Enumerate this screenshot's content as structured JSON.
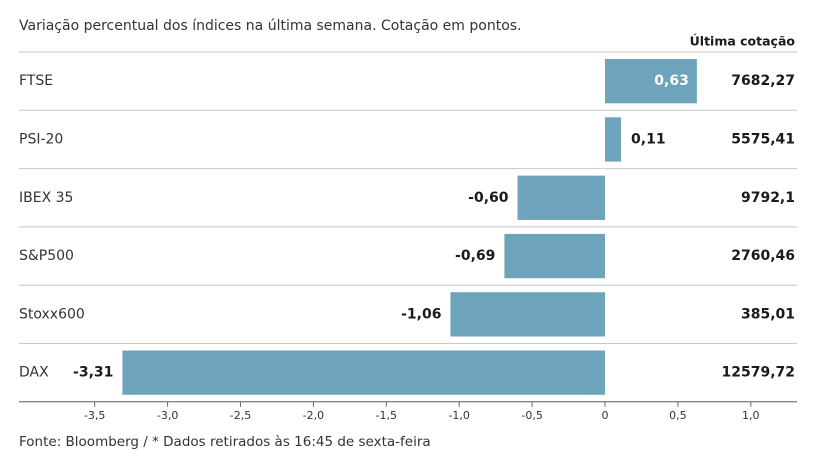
{
  "header": {
    "subtitle": "Variação percentual dos índices na última semana. Cotação em pontos."
  },
  "footer": {
    "source": "Fonte: Bloomberg / * Dados retirados às 16:45 de sexta-feira"
  },
  "chart_data": {
    "type": "bar",
    "orientation": "horizontal",
    "title": "",
    "xlabel": "",
    "ylabel": "",
    "xlim": [
      -3.5,
      1.0
    ],
    "grid": false,
    "bar_color": "#6ea3bc",
    "value_column_header": "Última cotação",
    "categories": [
      "FTSE",
      "PSI-20",
      "IBEX 35",
      "S&P500",
      "Stoxx600",
      "DAX"
    ],
    "values": [
      0.63,
      0.11,
      -0.6,
      -0.69,
      -1.06,
      -3.31
    ],
    "value_labels": [
      "0,63",
      "0,11",
      "-0,60",
      "-0,69",
      "-1,06",
      "-3,31"
    ],
    "last_quote": [
      "7682,27",
      "5575,41",
      "9792,1",
      "2760,46",
      "385,01",
      "12579,72"
    ],
    "ticks": [
      -3.5,
      -3.0,
      -2.5,
      -2.0,
      -1.5,
      -1.0,
      -0.5,
      0,
      0.5,
      1.0
    ],
    "tick_labels": [
      "-3,5",
      "-3,0",
      "-2,5",
      "-2,0",
      "-1,5",
      "-1,0",
      "-0,5",
      "0",
      "0,5",
      "1,0"
    ]
  }
}
